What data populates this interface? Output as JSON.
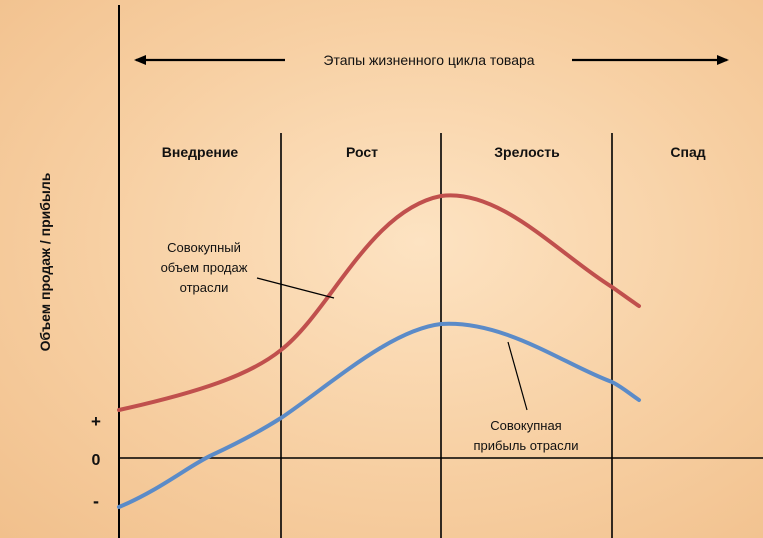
{
  "title": "Этапы жизненного цикла товара",
  "y_axis_label": "Объем продаж / прибыль",
  "y_ticks": {
    "plus": "+",
    "zero": "0",
    "minus": "-"
  },
  "stages": [
    "Внедрение",
    "Рост",
    "Зрелость",
    "Спад"
  ],
  "annotations": {
    "sales": [
      "Совокупный",
      "объем продаж",
      "отрасли"
    ],
    "profit": [
      "Совокупная",
      "прибыль отрасли"
    ]
  },
  "colors": {
    "sales_curve": "#c0504d",
    "profit_curve": "#5b8bc8",
    "axes": "#000000"
  },
  "chart_data": {
    "type": "line",
    "title": "Этапы жизненного цикла товара",
    "ylabel": "Объем продаж / прибыль",
    "stages": [
      "Внедрение",
      "Рост",
      "Зрелость",
      "Спад"
    ],
    "series": [
      {
        "name": "Совокупный объем продаж отрасли",
        "shape": [
          "low at start",
          "rising through Внедрение",
          "steep rise in Рост",
          "peak at Рост/Зрелость boundary",
          "decline through Зрелость",
          "continues into Спад"
        ]
      },
      {
        "name": "Совокупная прибыль отрасли",
        "shape": [
          "negative at start",
          "crosses zero in Внедрение",
          "rises through Рост",
          "peak at Рост/Зрелость boundary",
          "declines through Зрелость into Спад"
        ]
      }
    ]
  }
}
